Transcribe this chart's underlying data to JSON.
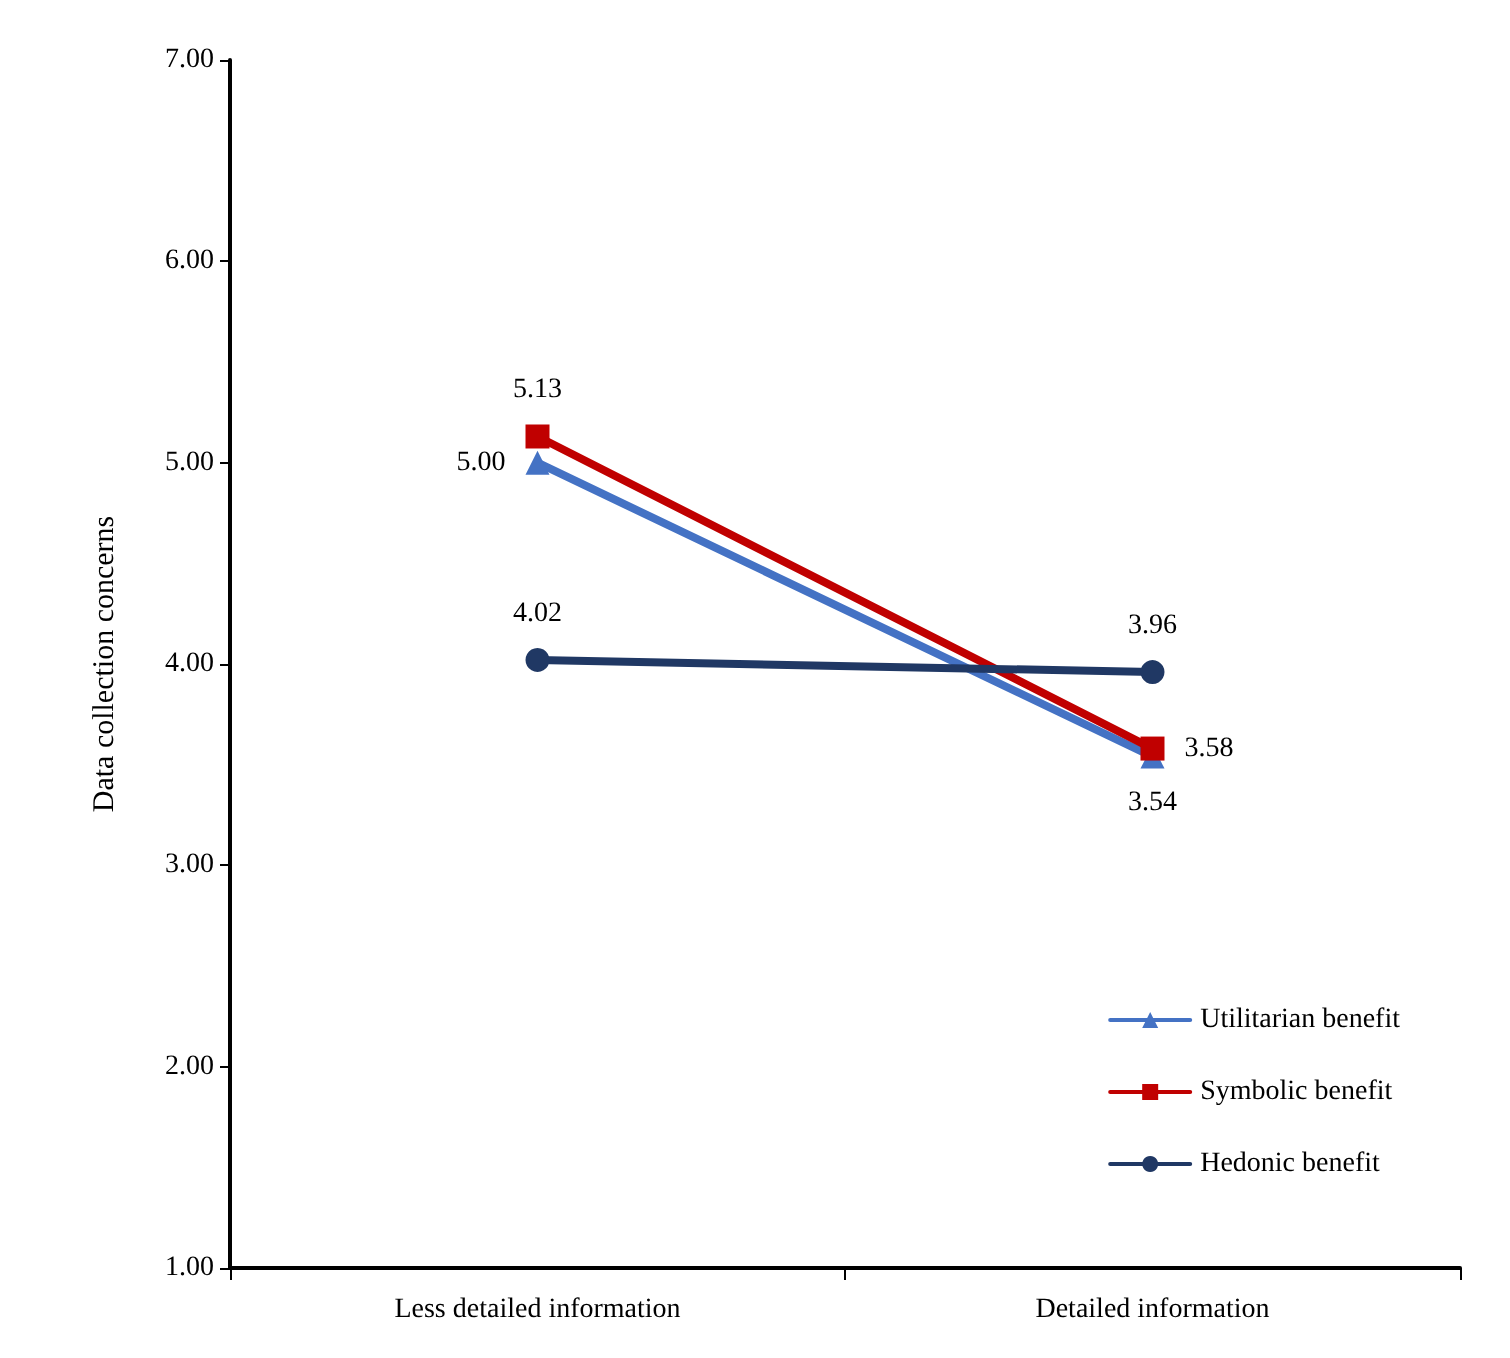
{
  "chart_data": {
    "type": "line",
    "ylabel": "Data collection concerns",
    "categories": [
      "Less detailed information",
      "Detailed information"
    ],
    "series": [
      {
        "name": "Utilitarian benefit",
        "color": "#4472c4",
        "marker": "triangle",
        "values": [
          5.0,
          3.54
        ],
        "value_labels": [
          "5.00",
          "3.54"
        ]
      },
      {
        "name": "Symbolic benefit",
        "color": "#c00000",
        "marker": "square",
        "values": [
          5.13,
          3.58
        ],
        "value_labels": [
          "5.13",
          "3.58"
        ]
      },
      {
        "name": "Hedonic benefit",
        "color": "#203864",
        "marker": "circle",
        "values": [
          4.02,
          3.96
        ],
        "value_labels": [
          "4.02",
          "3.96"
        ]
      }
    ],
    "ylim": [
      1,
      7
    ],
    "yticks": [
      {
        "value": 1,
        "label": "1.00"
      },
      {
        "value": 2,
        "label": "2.00"
      },
      {
        "value": 3,
        "label": "3.00"
      },
      {
        "value": 4,
        "label": "4.00"
      },
      {
        "value": 5,
        "label": "5.00"
      },
      {
        "value": 6,
        "label": "6.00"
      },
      {
        "value": 7,
        "label": "7.00"
      }
    ],
    "grid": false,
    "legend": "bottom right",
    "line_style": "solid"
  }
}
